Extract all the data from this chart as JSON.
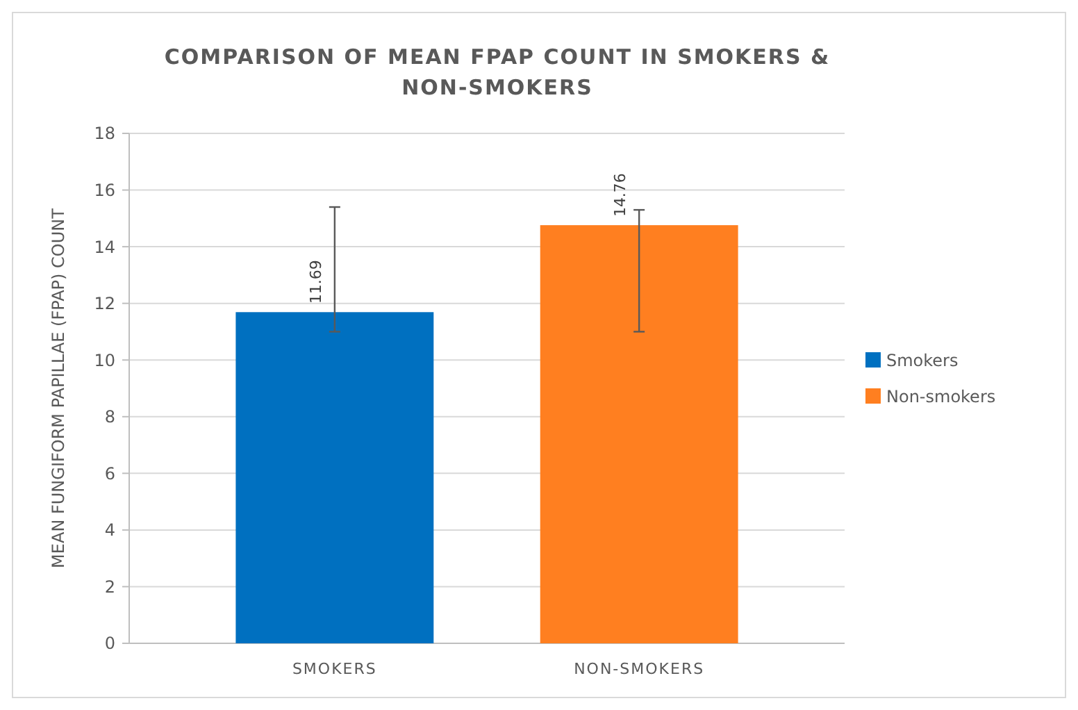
{
  "chart_data": {
    "type": "bar",
    "title": "COMPARISON OF MEAN FPAP COUNT IN SMOKERS & NON-SMOKERS",
    "ylabel": "MEAN FUNGIFORM PAPILLAE (FPAP) COUNT",
    "categories": [
      "SMOKERS",
      "NON-SMOKERS"
    ],
    "series": [
      {
        "name": "Smokers",
        "color": "#0070c0",
        "values": [
          11.69,
          null
        ],
        "errors": [
          [
            11.0,
            15.4
          ],
          null
        ]
      },
      {
        "name": "Non-smokers",
        "color": "#ff7f20",
        "values": [
          null,
          14.76
        ],
        "errors": [
          null,
          [
            11.0,
            15.3
          ]
        ]
      }
    ],
    "ylim": [
      0,
      18
    ],
    "yticks": [
      0,
      2,
      4,
      6,
      8,
      10,
      12,
      14,
      16,
      18
    ],
    "grid": "y",
    "legend": "right",
    "data_labels": true
  }
}
